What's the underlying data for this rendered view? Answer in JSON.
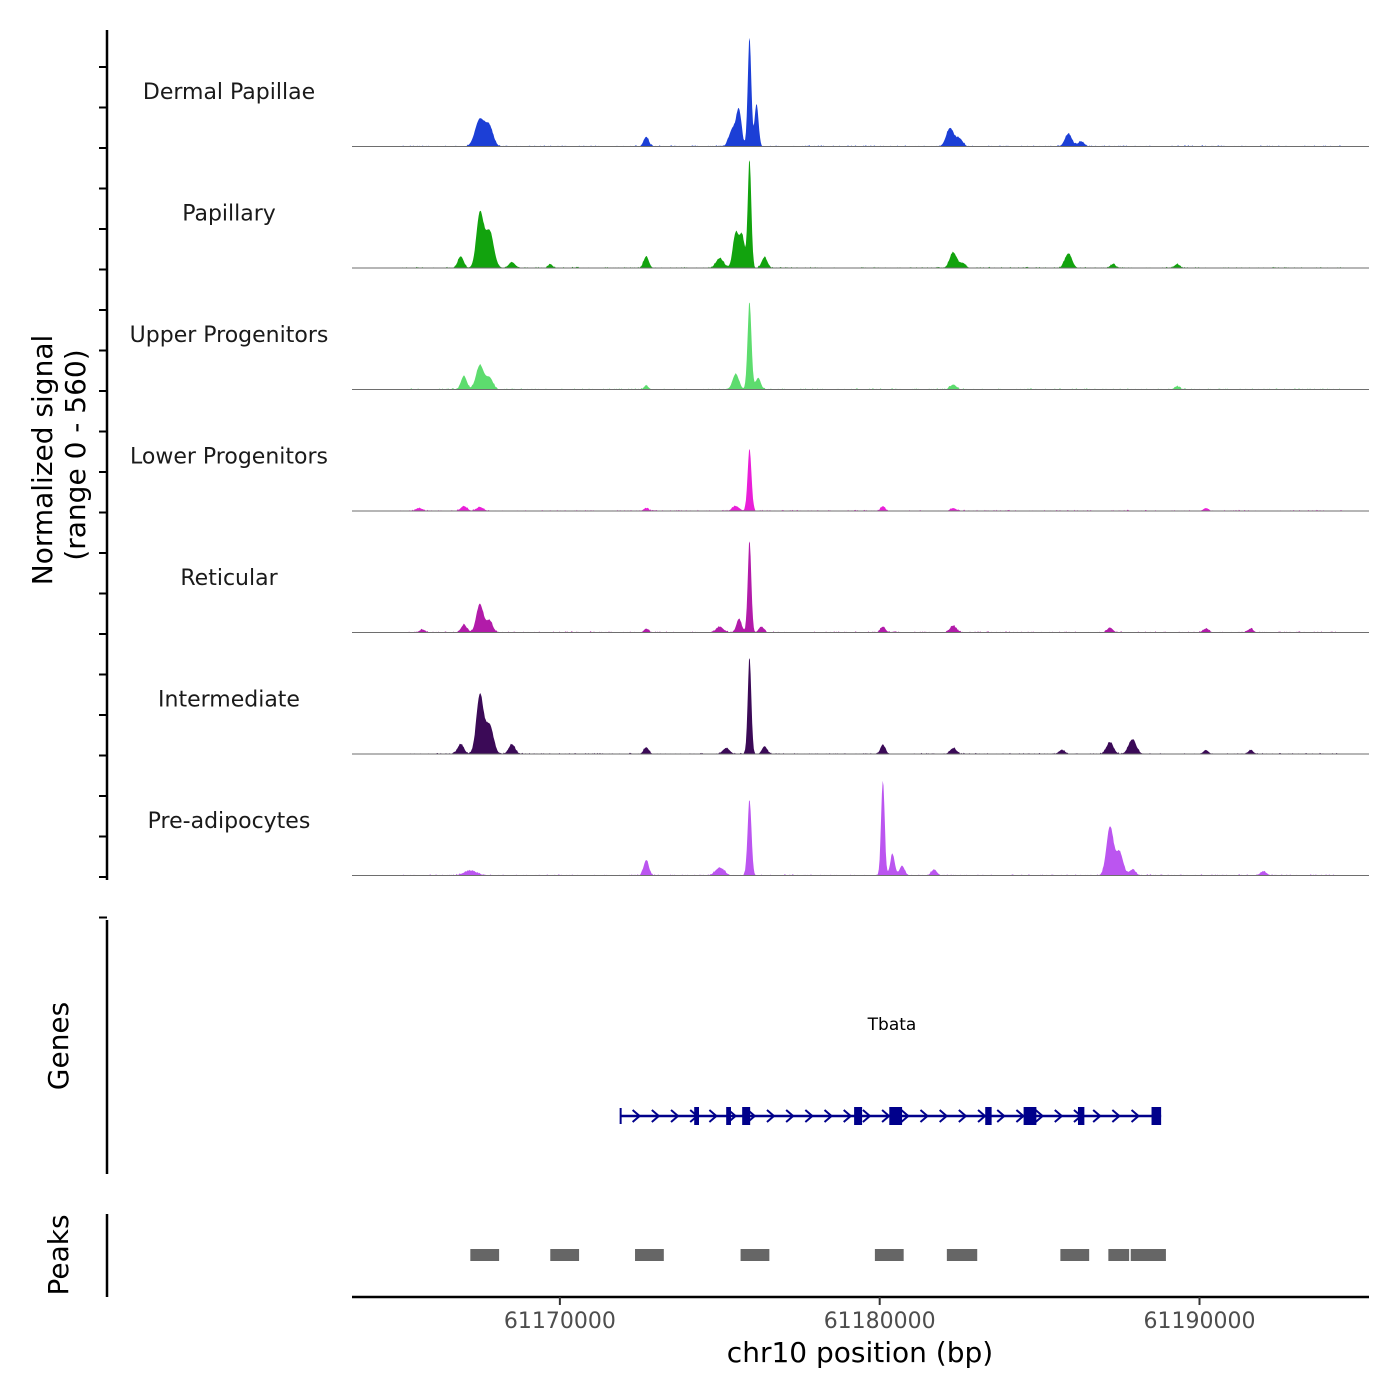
{
  "chart_data": {
    "type": "area",
    "title": "",
    "ylabel_line1": "Normalized signal",
    "ylabel_line2": "(range 0 - 560)",
    "y_range": [
      0,
      560
    ],
    "xlabel": "chr10 position (bp)",
    "xlim": [
      61163500,
      61195300
    ],
    "x_ticks": [
      61170000,
      61180000,
      61190000
    ],
    "x_tick_labels": [
      "61170000",
      "61180000",
      "61190000"
    ],
    "signal_start": 61165000,
    "signal_end": 61194500,
    "tracks": [
      {
        "name": "Dermal Papillae",
        "color": "#1c3fd6",
        "peaks": [
          {
            "pos": 61167500,
            "height": 140,
            "width": 150
          },
          {
            "pos": 61167800,
            "height": 95,
            "width": 120
          },
          {
            "pos": 61172700,
            "height": 50,
            "width": 80
          },
          {
            "pos": 61175400,
            "height": 90,
            "width": 110
          },
          {
            "pos": 61175600,
            "height": 180,
            "width": 80
          },
          {
            "pos": 61175930,
            "height": 560,
            "width": 55
          },
          {
            "pos": 61176150,
            "height": 220,
            "width": 60
          },
          {
            "pos": 61182200,
            "height": 95,
            "width": 120
          },
          {
            "pos": 61182500,
            "height": 40,
            "width": 100
          },
          {
            "pos": 61185900,
            "height": 65,
            "width": 110
          },
          {
            "pos": 61186300,
            "height": 25,
            "width": 100
          }
        ]
      },
      {
        "name": "Papillary",
        "color": "#12a30e",
        "peaks": [
          {
            "pos": 61166900,
            "height": 60,
            "width": 90
          },
          {
            "pos": 61167500,
            "height": 280,
            "width": 110
          },
          {
            "pos": 61167800,
            "height": 190,
            "width": 130
          },
          {
            "pos": 61168500,
            "height": 30,
            "width": 100
          },
          {
            "pos": 61169700,
            "height": 20,
            "width": 70
          },
          {
            "pos": 61172700,
            "height": 60,
            "width": 80
          },
          {
            "pos": 61175000,
            "height": 50,
            "width": 120
          },
          {
            "pos": 61175500,
            "height": 180,
            "width": 90
          },
          {
            "pos": 61175700,
            "height": 160,
            "width": 80
          },
          {
            "pos": 61175930,
            "height": 560,
            "width": 55
          },
          {
            "pos": 61176400,
            "height": 55,
            "width": 90
          },
          {
            "pos": 61182300,
            "height": 80,
            "width": 110
          },
          {
            "pos": 61182600,
            "height": 25,
            "width": 90
          },
          {
            "pos": 61185900,
            "height": 75,
            "width": 110
          },
          {
            "pos": 61187300,
            "height": 20,
            "width": 80
          },
          {
            "pos": 61189300,
            "height": 20,
            "width": 80
          }
        ]
      },
      {
        "name": "Upper Progenitors",
        "color": "#5ddc6e",
        "peaks": [
          {
            "pos": 61167000,
            "height": 70,
            "width": 90
          },
          {
            "pos": 61167500,
            "height": 125,
            "width": 120
          },
          {
            "pos": 61167800,
            "height": 60,
            "width": 110
          },
          {
            "pos": 61172700,
            "height": 20,
            "width": 70
          },
          {
            "pos": 61175500,
            "height": 80,
            "width": 100
          },
          {
            "pos": 61175930,
            "height": 450,
            "width": 60
          },
          {
            "pos": 61176200,
            "height": 60,
            "width": 80
          },
          {
            "pos": 61182300,
            "height": 25,
            "width": 100
          },
          {
            "pos": 61189300,
            "height": 15,
            "width": 80
          }
        ]
      },
      {
        "name": "Lower Progenitors",
        "color": "#e91fd8",
        "peaks": [
          {
            "pos": 61165600,
            "height": 15,
            "width": 100
          },
          {
            "pos": 61167000,
            "height": 25,
            "width": 100
          },
          {
            "pos": 61167500,
            "height": 20,
            "width": 110
          },
          {
            "pos": 61172700,
            "height": 15,
            "width": 80
          },
          {
            "pos": 61175500,
            "height": 25,
            "width": 110
          },
          {
            "pos": 61175930,
            "height": 320,
            "width": 60
          },
          {
            "pos": 61180100,
            "height": 25,
            "width": 70
          },
          {
            "pos": 61182300,
            "height": 15,
            "width": 90
          },
          {
            "pos": 61190200,
            "height": 15,
            "width": 80
          }
        ]
      },
      {
        "name": "Reticular",
        "color": "#b21ba9",
        "peaks": [
          {
            "pos": 61165700,
            "height": 15,
            "width": 90
          },
          {
            "pos": 61167000,
            "height": 40,
            "width": 90
          },
          {
            "pos": 61167500,
            "height": 145,
            "width": 110
          },
          {
            "pos": 61167800,
            "height": 60,
            "width": 100
          },
          {
            "pos": 61172700,
            "height": 20,
            "width": 70
          },
          {
            "pos": 61175000,
            "height": 30,
            "width": 110
          },
          {
            "pos": 61175600,
            "height": 70,
            "width": 80
          },
          {
            "pos": 61175930,
            "height": 470,
            "width": 55
          },
          {
            "pos": 61176300,
            "height": 30,
            "width": 80
          },
          {
            "pos": 61180100,
            "height": 30,
            "width": 80
          },
          {
            "pos": 61182300,
            "height": 35,
            "width": 100
          },
          {
            "pos": 61187200,
            "height": 25,
            "width": 90
          },
          {
            "pos": 61190200,
            "height": 20,
            "width": 90
          },
          {
            "pos": 61191600,
            "height": 20,
            "width": 80
          }
        ]
      },
      {
        "name": "Intermediate",
        "color": "#3b0a57",
        "peaks": [
          {
            "pos": 61166900,
            "height": 50,
            "width": 100
          },
          {
            "pos": 61167500,
            "height": 305,
            "width": 110
          },
          {
            "pos": 61167800,
            "height": 150,
            "width": 120
          },
          {
            "pos": 61168500,
            "height": 50,
            "width": 100
          },
          {
            "pos": 61172700,
            "height": 35,
            "width": 80
          },
          {
            "pos": 61175200,
            "height": 30,
            "width": 110
          },
          {
            "pos": 61175930,
            "height": 500,
            "width": 55
          },
          {
            "pos": 61176400,
            "height": 40,
            "width": 80
          },
          {
            "pos": 61180100,
            "height": 45,
            "width": 80
          },
          {
            "pos": 61182300,
            "height": 30,
            "width": 100
          },
          {
            "pos": 61185700,
            "height": 20,
            "width": 100
          },
          {
            "pos": 61187200,
            "height": 60,
            "width": 110
          },
          {
            "pos": 61187900,
            "height": 75,
            "width": 120
          },
          {
            "pos": 61190200,
            "height": 20,
            "width": 80
          },
          {
            "pos": 61191600,
            "height": 20,
            "width": 80
          }
        ]
      },
      {
        "name": "Pre-adipocytes",
        "color": "#bb55f0",
        "peaks": [
          {
            "pos": 61167200,
            "height": 25,
            "width": 200
          },
          {
            "pos": 61172700,
            "height": 80,
            "width": 80
          },
          {
            "pos": 61175000,
            "height": 40,
            "width": 140
          },
          {
            "pos": 61175930,
            "height": 390,
            "width": 60
          },
          {
            "pos": 61180100,
            "height": 490,
            "width": 55
          },
          {
            "pos": 61180400,
            "height": 110,
            "width": 70
          },
          {
            "pos": 61180700,
            "height": 50,
            "width": 80
          },
          {
            "pos": 61181700,
            "height": 30,
            "width": 90
          },
          {
            "pos": 61187200,
            "height": 250,
            "width": 110
          },
          {
            "pos": 61187500,
            "height": 120,
            "width": 110
          },
          {
            "pos": 61187900,
            "height": 30,
            "width": 100
          },
          {
            "pos": 61192000,
            "height": 20,
            "width": 100
          }
        ]
      }
    ],
    "genes_label": "Genes",
    "gene": {
      "name": "Tbata",
      "start": 61171900,
      "end": 61188800,
      "strand": "+",
      "color": "#00008b",
      "exons": [
        [
          61174200,
          61174350
        ],
        [
          61175200,
          61175350
        ],
        [
          61175700,
          61175950
        ],
        [
          61179200,
          61179450
        ],
        [
          61180300,
          61180700
        ],
        [
          61183300,
          61183500
        ],
        [
          61184500,
          61184900
        ],
        [
          61186200,
          61186400
        ],
        [
          61188500,
          61188800
        ]
      ]
    },
    "peaks_label": "Peaks",
    "peaks_color": "#666666",
    "peak_regions": [
      [
        61167200,
        61168100
      ],
      [
        61169700,
        61170600
      ],
      [
        61172350,
        61173250
      ],
      [
        61175650,
        61176550
      ],
      [
        61179850,
        61180750
      ],
      [
        61182100,
        61183050
      ],
      [
        61185650,
        61186550
      ],
      [
        61187150,
        61187800
      ],
      [
        61187850,
        61188950
      ]
    ]
  }
}
